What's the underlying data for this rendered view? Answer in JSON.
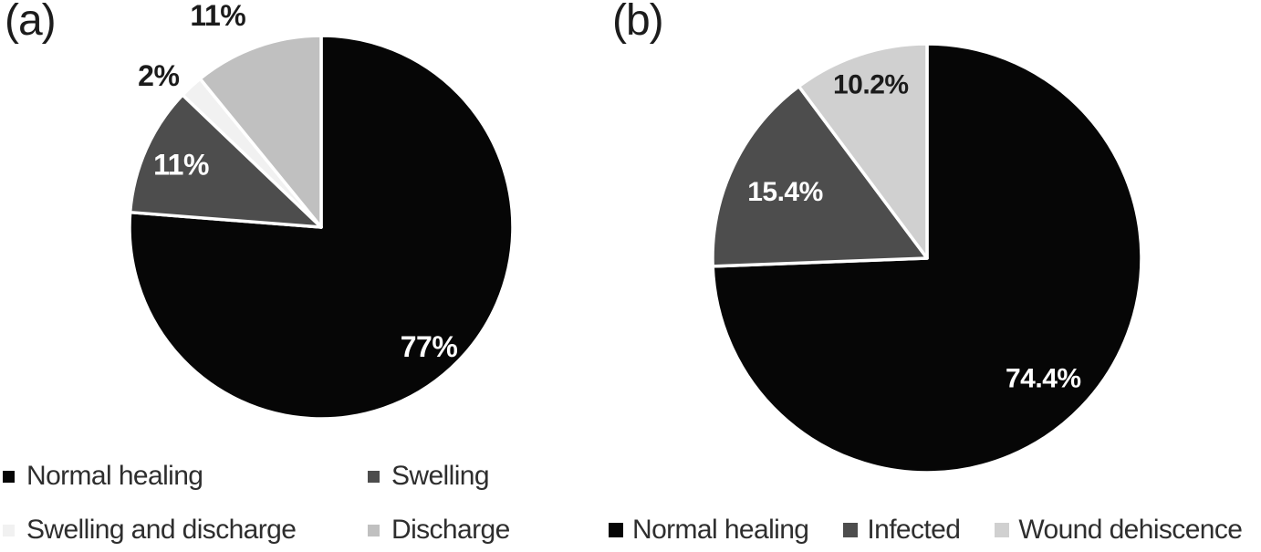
{
  "figure": {
    "background": "#ffffff",
    "panel_a": {
      "label": "(a)"
    },
    "panel_b": {
      "label": "(b)"
    }
  },
  "chart_data": [
    {
      "type": "pie",
      "panel": "a",
      "title": "",
      "start_angle_deg": 0,
      "direction": "clockwise",
      "separator_color": "#ffffff",
      "legend_position": "bottom",
      "legend_columns": 2,
      "slices": [
        {
          "label": "Normal healing",
          "value": 77,
          "display": "77%",
          "color": "#060606",
          "label_color": "#ffffff",
          "label_angle_deg": 138,
          "label_radius_frac": 0.84
        },
        {
          "label": "Swelling",
          "value": 11,
          "display": "11%",
          "color": "#4d4d4d",
          "label_color": "#ffffff",
          "label_angle_deg": 294,
          "label_radius_frac": 0.8
        },
        {
          "label": "Swelling and discharge",
          "value": 2,
          "display": "2%",
          "color": "#f1f1f1",
          "label_color": "#1b1b1b",
          "label_angle_deg": 313,
          "label_radius_frac": 1.16
        },
        {
          "label": "Discharge",
          "value": 11,
          "display": "11%",
          "color": "#c0c0c0",
          "label_color": "#1b1b1b",
          "label_angle_deg": 334,
          "label_radius_frac": 1.23
        }
      ]
    },
    {
      "type": "pie",
      "panel": "b",
      "title": "",
      "start_angle_deg": 0,
      "direction": "clockwise",
      "separator_color": "#ffffff",
      "legend_position": "bottom",
      "legend_columns": 3,
      "slices": [
        {
          "label": "Normal healing",
          "value": 74.4,
          "display": "74.4%",
          "color": "#060606",
          "label_color": "#ffffff",
          "label_angle_deg": 136,
          "label_radius_frac": 0.78
        },
        {
          "label": "Infected",
          "value": 15.4,
          "display": "15.4%",
          "color": "#4d4d4d",
          "label_color": "#ffffff",
          "label_angle_deg": 295,
          "label_radius_frac": 0.73
        },
        {
          "label": "Wound dehiscence",
          "value": 10.2,
          "display": "10.2%",
          "color": "#d0d0d0",
          "label_color": "#1b1b1b",
          "label_angle_deg": 342,
          "label_radius_frac": 0.85
        }
      ]
    }
  ]
}
